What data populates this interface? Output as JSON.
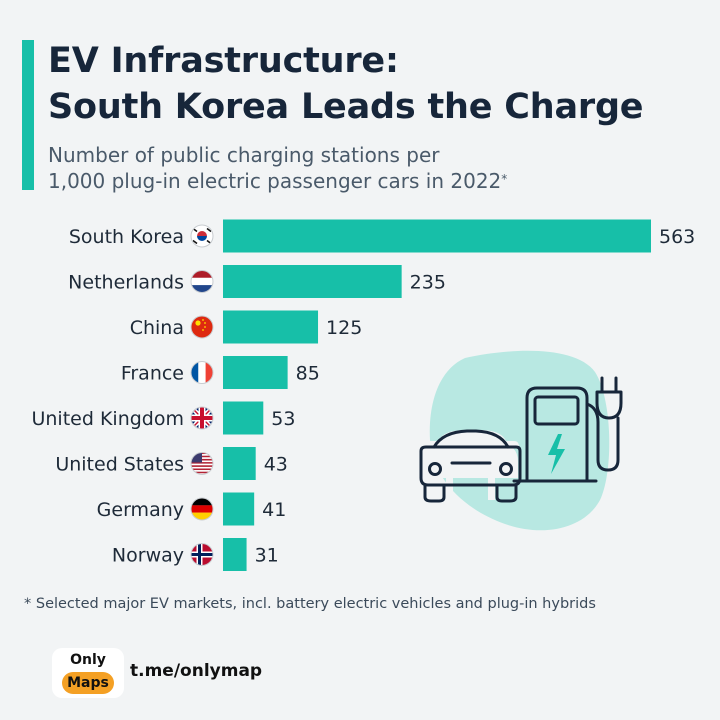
{
  "header": {
    "title_line1": "EV Infrastructure:",
    "title_line2": "South Korea Leads the Charge",
    "subtitle_line1": "Number of public charging stations per",
    "subtitle_line2": "1,000 plug-in electric passenger cars in 2022",
    "subtitle_marker": "*"
  },
  "colors": {
    "bar": "#17bfa8",
    "accent": "#17bfa8",
    "title": "#17263a",
    "illustration_blob": "#b8e8e2"
  },
  "chart_data": {
    "type": "bar",
    "orientation": "horizontal",
    "categories": [
      "South Korea",
      "Netherlands",
      "China",
      "France",
      "United Kingdom",
      "United States",
      "Germany",
      "Norway"
    ],
    "values": [
      563,
      235,
      125,
      85,
      53,
      43,
      41,
      31
    ],
    "flags": [
      "south-korea-flag-icon",
      "netherlands-flag-icon",
      "china-flag-icon",
      "france-flag-icon",
      "united-kingdom-flag-icon",
      "united-states-flag-icon",
      "germany-flag-icon",
      "norway-flag-icon"
    ],
    "data_labels": true,
    "grid": false
  },
  "footnote": "* Selected major EV markets, incl. battery electric vehicles and plug-in hybrids",
  "branding": {
    "badge_top": "Only",
    "badge_bottom": "Maps",
    "channel": "t.me/onlymap"
  },
  "illustration": {
    "icons": [
      "car-icon",
      "charging-station-icon",
      "plug-icon",
      "lightning-bolt-icon"
    ]
  }
}
